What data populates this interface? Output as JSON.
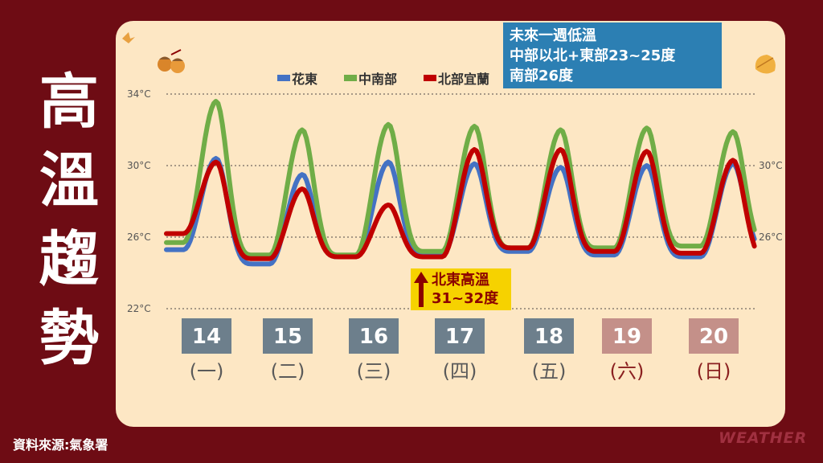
{
  "title_chars": [
    "高",
    "溫",
    "趨",
    "勢"
  ],
  "source": "資料來源:氣象署",
  "brand": "WEATHER",
  "info_box": {
    "line1": "未來一週低溫",
    "line2": "中部以北+東部23~25度",
    "line3": "南部26度"
  },
  "alert": {
    "line1": "北東高溫",
    "line2": "31~32度"
  },
  "colors": {
    "background": "#6e0c14",
    "panel": "#fde7c4",
    "hualien": "#4472c4",
    "central_south": "#70ad47",
    "north_yilan": "#c00000",
    "weekday_box": "#6d7f8c",
    "weekend_box": "#c49089",
    "weekday_text": "#5a5a5a",
    "weekend_text": "#8b2020"
  },
  "days": [
    {
      "date": "14",
      "weekday": "(一)",
      "weekend": false
    },
    {
      "date": "15",
      "weekday": "(二)",
      "weekend": false
    },
    {
      "date": "16",
      "weekday": "(三)",
      "weekend": false
    },
    {
      "date": "17",
      "weekday": "(四)",
      "weekend": false
    },
    {
      "date": "18",
      "weekday": "(五)",
      "weekend": false
    },
    {
      "date": "19",
      "weekday": "(六)",
      "weekend": true
    },
    {
      "date": "20",
      "weekday": "(日)",
      "weekend": true
    }
  ],
  "chart_data": {
    "type": "line",
    "title": "",
    "xlabel": "",
    "ylabel": "",
    "ylim": [
      22,
      35
    ],
    "y_ticks_left": [
      "34°C",
      "30°C",
      "26°C",
      "22°C"
    ],
    "y_tick_values_left": [
      34,
      30,
      26,
      22
    ],
    "y_ticks_right": [
      "30°C",
      "26°C"
    ],
    "y_tick_values_right": [
      30,
      26
    ],
    "grid": true,
    "legend": "top",
    "series": [
      {
        "name": "花東",
        "color": "#4472c4",
        "highs": [
          30.4,
          29.5,
          30.2,
          30.1,
          29.9,
          30.0,
          30.1
        ],
        "lows": [
          25.3,
          24.5,
          24.9,
          25.0,
          25.2,
          25.0,
          24.9,
          25.2
        ]
      },
      {
        "name": "中南部",
        "color": "#70ad47",
        "highs": [
          33.6,
          32.0,
          32.3,
          32.2,
          32.0,
          32.1,
          31.9
        ],
        "lows": [
          25.7,
          25.0,
          25.0,
          25.2,
          25.4,
          25.4,
          25.5,
          25.5
        ]
      },
      {
        "name": "北部宜蘭",
        "color": "#c00000",
        "highs": [
          30.2,
          28.7,
          27.8,
          30.9,
          30.9,
          30.8,
          30.3
        ],
        "lows": [
          26.2,
          24.8,
          24.9,
          24.9,
          25.4,
          25.2,
          25.1,
          24.7
        ]
      }
    ]
  }
}
